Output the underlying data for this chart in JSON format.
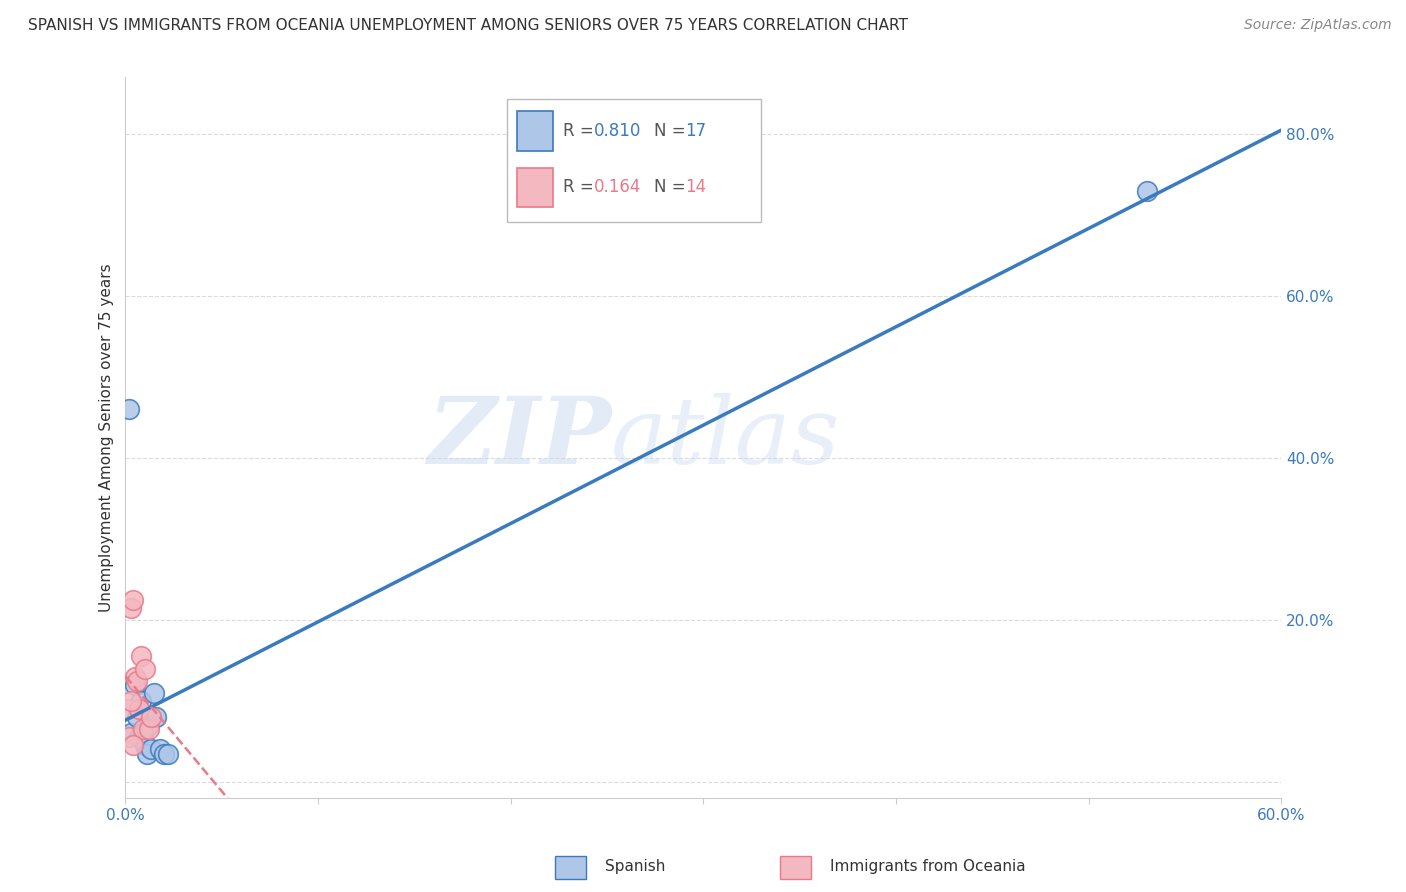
{
  "title": "SPANISH VS IMMIGRANTS FROM OCEANIA UNEMPLOYMENT AMONG SENIORS OVER 75 YEARS CORRELATION CHART",
  "source": "Source: ZipAtlas.com",
  "ylabel": "Unemployment Among Seniors over 75 years",
  "xlim": [
    0.0,
    0.6
  ],
  "ylim": [
    -0.02,
    0.87
  ],
  "xticks": [
    0.0,
    0.1,
    0.2,
    0.3,
    0.4,
    0.5,
    0.6
  ],
  "yticks": [
    0.0,
    0.2,
    0.4,
    0.6,
    0.8
  ],
  "ytick_labels": [
    "",
    "20.0%",
    "40.0%",
    "60.0%",
    "80.0%"
  ],
  "xtick_labels": [
    "0.0%",
    "",
    "",
    "",
    "",
    "",
    "60.0%"
  ],
  "spanish_x": [
    0.003,
    0.005,
    0.006,
    0.007,
    0.008,
    0.009,
    0.01,
    0.011,
    0.012,
    0.013,
    0.015,
    0.016,
    0.018,
    0.02,
    0.022,
    0.53,
    0.002
  ],
  "spanish_y": [
    0.06,
    0.12,
    0.08,
    0.055,
    0.1,
    0.06,
    0.045,
    0.035,
    0.07,
    0.04,
    0.11,
    0.08,
    0.04,
    0.035,
    0.035,
    0.73,
    0.46
  ],
  "oceania_x": [
    0.001,
    0.002,
    0.003,
    0.004,
    0.005,
    0.006,
    0.007,
    0.008,
    0.009,
    0.01,
    0.012,
    0.013,
    0.003,
    0.004
  ],
  "oceania_y": [
    0.09,
    0.055,
    0.215,
    0.225,
    0.13,
    0.125,
    0.09,
    0.155,
    0.065,
    0.14,
    0.065,
    0.08,
    0.1,
    0.045
  ],
  "R_spanish": 0.81,
  "N_spanish": 17,
  "R_oceania": 0.164,
  "N_oceania": 14,
  "color_spanish": "#aec6e8",
  "color_oceania": "#f4b8c1",
  "color_line_spanish": "#3a7abf",
  "color_line_oceania": "#e87a8a",
  "background_color": "#ffffff",
  "watermark_zip": "ZIP",
  "watermark_atlas": "atlas",
  "legend_R_color": "#3a7abf",
  "legend_R2_color": "#e87a8a"
}
